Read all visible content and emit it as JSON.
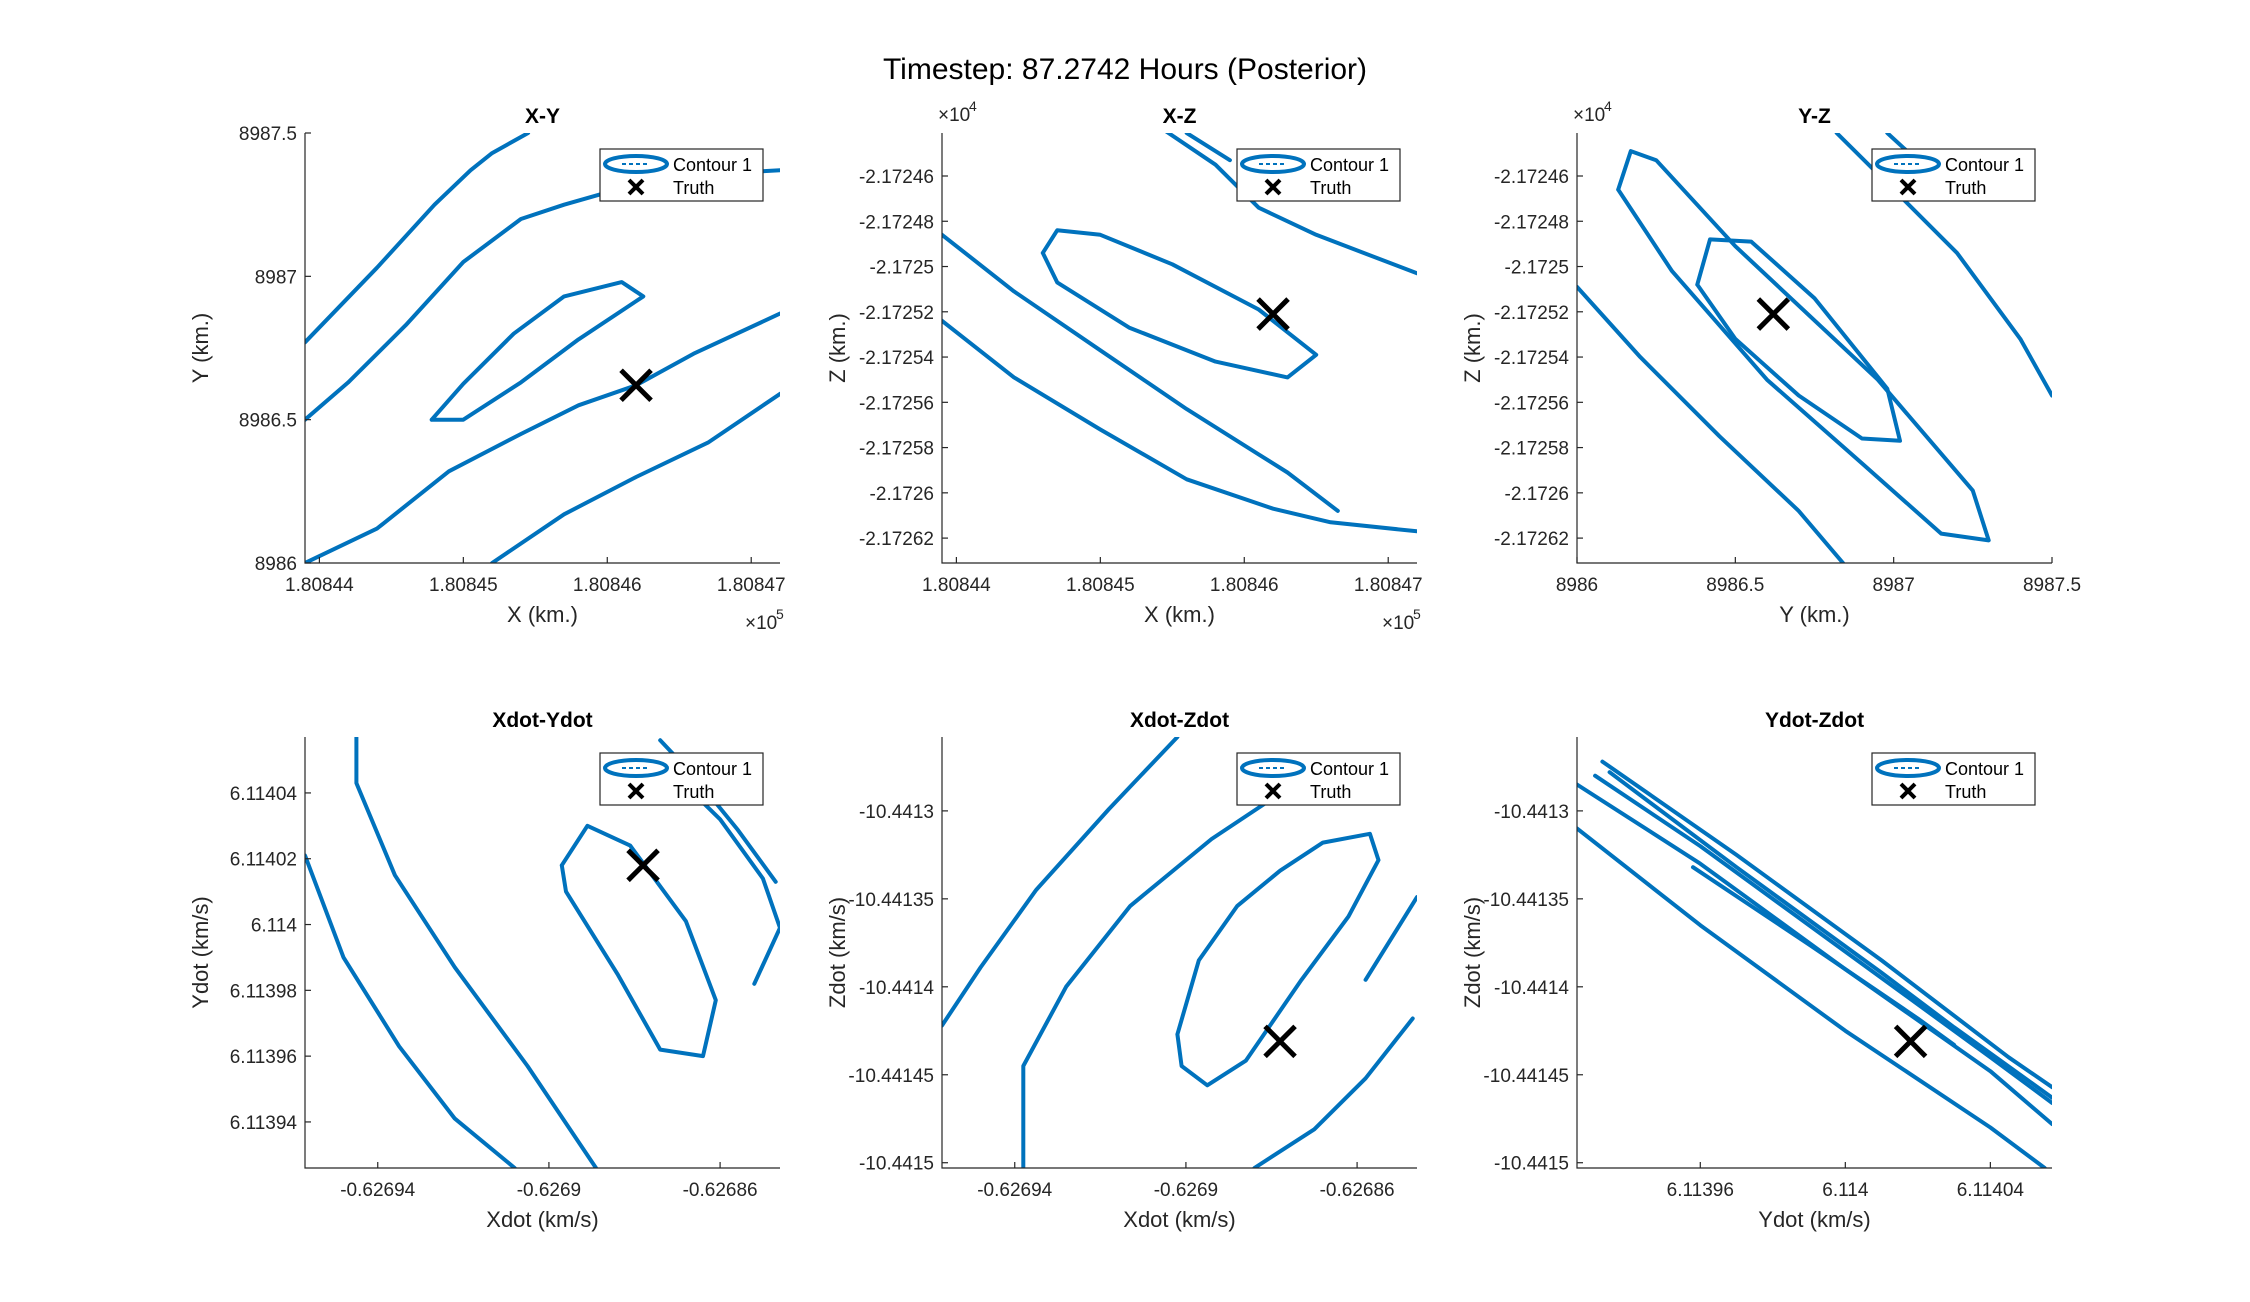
{
  "figure": {
    "title": "Timestep: 87.2742 Hours (Posterior)"
  },
  "colors": {
    "contour": "#0072BD",
    "truth": "#000000",
    "axes": "#262626",
    "background": "#ffffff"
  },
  "legend": {
    "contour_label": "Contour 1",
    "truth_label": "Truth",
    "placement": "top-right"
  },
  "chart_data": [
    {
      "type": "contour",
      "title": "X-Y",
      "xlabel": "X (km.)",
      "ylabel": "Y (km.)",
      "x_exponent": "5",
      "y_exponent": "",
      "xlim": [
        1.808439,
        1.808472
      ],
      "ylim": [
        8986.0,
        8987.5
      ],
      "xticks": [
        1.80844,
        1.80845,
        1.80846,
        1.80847
      ],
      "xtick_labels": [
        "1.80844",
        "1.80845",
        "1.80846",
        "1.80847"
      ],
      "yticks": [
        8986.0,
        8986.5,
        8987.0,
        8987.5
      ],
      "ytick_labels": [
        "8986",
        "8986.5",
        "8987",
        "8987.5"
      ],
      "truth": [
        1.808462,
        8986.62
      ],
      "contours": [
        [
          [
            1.8084478,
            8986.5
          ],
          [
            1.80845,
            8986.625
          ],
          [
            1.8084535,
            8986.8
          ],
          [
            1.808457,
            8986.93
          ],
          [
            1.808461,
            8986.98
          ],
          [
            1.8084625,
            8986.93
          ],
          [
            1.808458,
            8986.78
          ],
          [
            1.808454,
            8986.63
          ],
          [
            1.80845,
            8986.5
          ],
          [
            1.8084478,
            8986.5
          ]
        ],
        [
          [
            1.808439,
            8986.5
          ],
          [
            1.808442,
            8986.63
          ],
          [
            1.808446,
            8986.83
          ],
          [
            1.80845,
            8987.05
          ],
          [
            1.808454,
            8987.2
          ],
          [
            1.808457,
            8987.25
          ],
          [
            1.8084605,
            8987.3
          ]
        ],
        [
          [
            1.808439,
            8986.0
          ],
          [
            1.808444,
            8986.12
          ],
          [
            1.808449,
            8986.32
          ],
          [
            1.808454,
            8986.45
          ],
          [
            1.808458,
            8986.55
          ],
          [
            1.808462,
            8986.62
          ],
          [
            1.808466,
            8986.73
          ],
          [
            1.808472,
            8986.87
          ]
        ],
        [
          [
            1.808439,
            8986.77
          ],
          [
            1.808444,
            8987.03
          ],
          [
            1.808448,
            8987.25
          ],
          [
            1.8084505,
            8987.37
          ],
          [
            1.808452,
            8987.43
          ],
          [
            1.8084545,
            8987.5
          ]
        ],
        [
          [
            1.808452,
            8986.0
          ],
          [
            1.808457,
            8986.17
          ],
          [
            1.808462,
            8986.3
          ],
          [
            1.808467,
            8986.42
          ],
          [
            1.808472,
            8986.59
          ]
        ],
        [
          [
            1.8084685,
            8987.36
          ],
          [
            1.808472,
            8987.37
          ]
        ]
      ]
    },
    {
      "type": "contour",
      "title": "X-Z",
      "xlabel": "X (km.)",
      "ylabel": "Z (km.)",
      "x_exponent": "5",
      "y_exponent": "4",
      "xlim": [
        1.808439,
        1.808472
      ],
      "ylim": [
        -2.172631,
        -2.172441
      ],
      "xticks": [
        1.80844,
        1.80845,
        1.80846,
        1.80847
      ],
      "xtick_labels": [
        "1.80844",
        "1.80845",
        "1.80846",
        "1.80847"
      ],
      "yticks": [
        -2.17262,
        -2.1726,
        -2.17258,
        -2.17256,
        -2.17254,
        -2.17252,
        -2.1725,
        -2.17248,
        -2.17246
      ],
      "ytick_labels": [
        "-2.17262",
        "-2.1726",
        "-2.17258",
        "-2.17256",
        "-2.17254",
        "-2.17252",
        "-2.1725",
        "-2.17248",
        "-2.17246"
      ],
      "truth": [
        1.808462,
        -2.172521
      ],
      "contours": [
        [
          [
            1.808446,
            -2.172494
          ],
          [
            1.808447,
            -2.172484
          ],
          [
            1.80845,
            -2.172486
          ],
          [
            1.808455,
            -2.172499
          ],
          [
            1.808461,
            -2.172519
          ],
          [
            1.808465,
            -2.172539
          ],
          [
            1.808463,
            -2.172549
          ],
          [
            1.808458,
            -2.172542
          ],
          [
            1.808452,
            -2.172527
          ],
          [
            1.808447,
            -2.172507
          ],
          [
            1.808446,
            -2.172494
          ]
        ],
        [
          [
            1.808439,
            -2.172486
          ],
          [
            1.808444,
            -2.172511
          ],
          [
            1.80845,
            -2.172537
          ],
          [
            1.808456,
            -2.172563
          ],
          [
            1.808461,
            -2.172583
          ],
          [
            1.808463,
            -2.172591
          ],
          [
            1.8084665,
            -2.172608
          ]
        ],
        [
          [
            1.808439,
            -2.172524
          ],
          [
            1.808444,
            -2.172549
          ],
          [
            1.80845,
            -2.172572
          ],
          [
            1.808456,
            -2.172594
          ],
          [
            1.808462,
            -2.172607
          ],
          [
            1.808466,
            -2.172613
          ],
          [
            1.808472,
            -2.172617
          ]
        ],
        [
          [
            1.8084545,
            -2.17244
          ],
          [
            1.808458,
            -2.172455
          ],
          [
            1.808461,
            -2.172474
          ],
          [
            1.808465,
            -2.172486
          ],
          [
            1.808472,
            -2.172503
          ]
        ],
        [
          [
            1.808456,
            -2.172441
          ],
          [
            1.808459,
            -2.172453
          ]
        ]
      ]
    },
    {
      "type": "contour",
      "title": "Y-Z",
      "xlabel": "Y (km.)",
      "ylabel": "Z (km.)",
      "x_exponent": "",
      "y_exponent": "4",
      "xlim": [
        8986.0,
        8987.5
      ],
      "ylim": [
        -2.172631,
        -2.172441
      ],
      "xticks": [
        8986.0,
        8986.5,
        8987.0,
        8987.5
      ],
      "xtick_labels": [
        "8986",
        "8986.5",
        "8987",
        "8987.5"
      ],
      "yticks": [
        -2.17262,
        -2.1726,
        -2.17258,
        -2.17256,
        -2.17254,
        -2.17252,
        -2.1725,
        -2.17248,
        -2.17246
      ],
      "ytick_labels": [
        "-2.17262",
        "-2.1726",
        "-2.17258",
        "-2.17256",
        "-2.17254",
        "-2.17252",
        "-2.1725",
        "-2.17248",
        "-2.17246"
      ],
      "truth": [
        8986.62,
        -2.172521
      ],
      "contours": [
        [
          [
            8986.38,
            -2.172508
          ],
          [
            8986.42,
            -2.172488
          ],
          [
            8986.55,
            -2.172489
          ],
          [
            8986.75,
            -2.172514
          ],
          [
            8986.98,
            -2.172554
          ],
          [
            8987.02,
            -2.172577
          ],
          [
            8986.9,
            -2.172576
          ],
          [
            8986.7,
            -2.172557
          ],
          [
            8986.5,
            -2.172532
          ],
          [
            8986.38,
            -2.172508
          ]
        ],
        [
          [
            8986.13,
            -2.172466
          ],
          [
            8986.17,
            -2.172449
          ],
          [
            8986.25,
            -2.172453
          ],
          [
            8986.5,
            -2.172491
          ],
          [
            8986.95,
            -2.17255
          ],
          [
            8987.25,
            -2.172599
          ],
          [
            8987.3,
            -2.172621
          ],
          [
            8987.15,
            -2.172618
          ],
          [
            8986.9,
            -2.172587
          ],
          [
            8986.6,
            -2.17255
          ],
          [
            8986.3,
            -2.172502
          ],
          [
            8986.13,
            -2.172466
          ]
        ],
        [
          [
            8986.0,
            -2.172509
          ],
          [
            8986.2,
            -2.17254
          ],
          [
            8986.45,
            -2.172575
          ],
          [
            8986.7,
            -2.172608
          ],
          [
            8986.84,
            -2.172631
          ]
        ],
        [
          [
            8986.82,
            -2.172441
          ],
          [
            8987.0,
            -2.172466
          ],
          [
            8987.2,
            -2.172494
          ],
          [
            8987.4,
            -2.172532
          ],
          [
            8987.5,
            -2.172557
          ]
        ],
        [
          [
            8986.98,
            -2.172441
          ],
          [
            8987.05,
            -2.17245
          ]
        ]
      ]
    },
    {
      "type": "contour",
      "title": "Xdot-Ydot",
      "xlabel": "Xdot (km/s)",
      "ylabel": "Ydot (km/s)",
      "x_exponent": "",
      "y_exponent": "",
      "xlim": [
        -0.626957,
        -0.626846
      ],
      "ylim": [
        6.113926,
        6.114057
      ],
      "xticks": [
        -0.62694,
        -0.6269,
        -0.62686
      ],
      "xtick_labels": [
        "-0.62694",
        "-0.6269",
        "-0.62686"
      ],
      "yticks": [
        6.11394,
        6.11396,
        6.11398,
        6.114,
        6.11402,
        6.11404
      ],
      "ytick_labels": [
        "6.11394",
        "6.11396",
        "6.11398",
        "6.114",
        "6.11402",
        "6.11404"
      ],
      "truth": [
        -0.626878,
        6.114018
      ],
      "contours": [
        [
          [
            -0.626897,
            6.114018
          ],
          [
            -0.626891,
            6.11403
          ],
          [
            -0.626881,
            6.114024
          ],
          [
            -0.626868,
            6.114001
          ],
          [
            -0.626861,
            6.113977
          ],
          [
            -0.626864,
            6.11396
          ],
          [
            -0.626874,
            6.113962
          ],
          [
            -0.626884,
            6.113985
          ],
          [
            -0.626896,
            6.11401
          ],
          [
            -0.626897,
            6.114018
          ]
        ],
        [
          [
            -0.626945,
            6.114057
          ],
          [
            -0.626945,
            6.114043
          ],
          [
            -0.626936,
            6.114015
          ],
          [
            -0.626922,
            6.113987
          ],
          [
            -0.626905,
            6.113957
          ],
          [
            -0.626889,
            6.113926
          ]
        ],
        [
          [
            -0.626957,
            6.114021
          ],
          [
            -0.626948,
            6.11399
          ],
          [
            -0.626935,
            6.113963
          ],
          [
            -0.626922,
            6.113941
          ],
          [
            -0.626908,
            6.113926
          ]
        ],
        [
          [
            -0.626874,
            6.114056
          ],
          [
            -0.626866,
            6.114045
          ],
          [
            -0.626856,
            6.114029
          ],
          [
            -0.626847,
            6.114013
          ]
        ],
        [
          [
            -0.626871,
            6.114046
          ],
          [
            -0.62686,
            6.114032
          ],
          [
            -0.62685,
            6.114014
          ],
          [
            -0.626846,
            6.113999
          ],
          [
            -0.626852,
            6.113982
          ]
        ]
      ]
    },
    {
      "type": "contour",
      "title": "Xdot-Zdot",
      "xlabel": "Xdot (km/s)",
      "ylabel": "Zdot (km/s)",
      "x_exponent": "",
      "y_exponent": "",
      "xlim": [
        -0.626957,
        -0.626846
      ],
      "ylim": [
        -10.441503,
        -10.441258
      ],
      "xticks": [
        -0.62694,
        -0.6269,
        -0.62686
      ],
      "xtick_labels": [
        "-0.62694",
        "-0.6269",
        "-0.62686"
      ],
      "yticks": [
        -10.4415,
        -10.44145,
        -10.4414,
        -10.44135,
        -10.4413
      ],
      "ytick_labels": [
        "-10.4415",
        "-10.44145",
        "-10.4414",
        "-10.44135",
        "-10.4413"
      ],
      "truth": [
        -0.626878,
        -10.441431
      ],
      "contours": [
        [
          [
            -0.626902,
            -10.441427
          ],
          [
            -0.626897,
            -10.441385
          ],
          [
            -0.626888,
            -10.441354
          ],
          [
            -0.626878,
            -10.441334
          ],
          [
            -0.626868,
            -10.441318
          ],
          [
            -0.626857,
            -10.441313
          ],
          [
            -0.626855,
            -10.441328
          ],
          [
            -0.626862,
            -10.44136
          ],
          [
            -0.626873,
            -10.441396
          ],
          [
            -0.626886,
            -10.441442
          ],
          [
            -0.626895,
            -10.441456
          ],
          [
            -0.626901,
            -10.441445
          ],
          [
            -0.626902,
            -10.441427
          ]
        ],
        [
          [
            -0.626957,
            -10.441422
          ],
          [
            -0.626948,
            -10.441389
          ],
          [
            -0.626935,
            -10.441345
          ],
          [
            -0.626918,
            -10.441299
          ],
          [
            -0.626902,
            -10.441258
          ]
        ],
        [
          [
            -0.626938,
            -10.441503
          ],
          [
            -0.626938,
            -10.441445
          ],
          [
            -0.626928,
            -10.4414
          ],
          [
            -0.626913,
            -10.441354
          ],
          [
            -0.626894,
            -10.441316
          ],
          [
            -0.626873,
            -10.441282
          ],
          [
            -0.626858,
            -10.441275
          ],
          [
            -0.626855,
            -10.441268
          ]
        ],
        [
          [
            -0.626884,
            -10.441503
          ],
          [
            -0.62687,
            -10.441481
          ],
          [
            -0.626858,
            -10.441452
          ],
          [
            -0.626847,
            -10.441418
          ]
        ],
        [
          [
            -0.626846,
            -10.441349
          ],
          [
            -0.626858,
            -10.441396
          ]
        ]
      ]
    },
    {
      "type": "contour",
      "title": "Ydot-Zdot",
      "xlabel": "Ydot (km/s)",
      "ylabel": "Zdot (km/s)",
      "x_exponent": "",
      "y_exponent": "",
      "xlim": [
        6.113926,
        6.114057
      ],
      "ylim": [
        -10.441503,
        -10.441258
      ],
      "xticks": [
        6.11396,
        6.114,
        6.11404
      ],
      "xtick_labels": [
        "6.11396",
        "6.114",
        "6.11404"
      ],
      "yticks": [
        -10.4415,
        -10.44145,
        -10.4414,
        -10.44135,
        -10.4413
      ],
      "ytick_labels": [
        "-10.4415",
        "-10.44145",
        "-10.4414",
        "-10.44135",
        "-10.4413"
      ],
      "truth": [
        6.114018,
        -10.441431
      ],
      "contours": [
        [
          [
            6.113926,
            -10.441285
          ],
          [
            6.11396,
            -10.44133
          ],
          [
            6.114,
            -10.44139
          ],
          [
            6.11404,
            -10.441448
          ],
          [
            6.114057,
            -10.441478
          ]
        ],
        [
          [
            6.113926,
            -10.44131
          ],
          [
            6.11396,
            -10.441365
          ],
          [
            6.114,
            -10.441425
          ],
          [
            6.11404,
            -10.44148
          ],
          [
            6.114055,
            -10.441503
          ]
        ],
        [
          [
            6.113931,
            -10.44128
          ],
          [
            6.11396,
            -10.44132
          ],
          [
            6.114,
            -10.44138
          ],
          [
            6.11404,
            -10.44144
          ],
          [
            6.114057,
            -10.441466
          ]
        ],
        [
          [
            6.113933,
            -10.441272
          ],
          [
            6.11397,
            -10.441325
          ],
          [
            6.11401,
            -10.441385
          ],
          [
            6.114045,
            -10.44144
          ],
          [
            6.114057,
            -10.441457
          ]
        ],
        [
          [
            6.113935,
            -10.441278
          ],
          [
            6.11397,
            -10.441332
          ],
          [
            6.11401,
            -10.441392
          ],
          [
            6.11403,
            -10.441423
          ],
          [
            6.114057,
            -10.441463
          ]
        ],
        [
          [
            6.113958,
            -10.441332
          ],
          [
            6.11399,
            -10.441376
          ],
          [
            6.11402,
            -10.441418
          ],
          [
            6.11403,
            -10.441433
          ]
        ]
      ]
    }
  ]
}
